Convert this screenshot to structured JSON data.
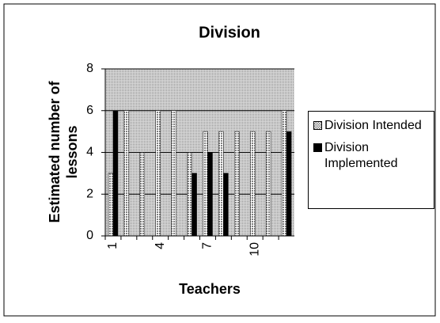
{
  "chart_data": {
    "type": "bar",
    "title": "Division",
    "x_label": "Teachers",
    "y_label": "Estimated number of lessons",
    "categories": [
      1,
      null,
      null,
      4,
      null,
      null,
      7,
      null,
      null,
      10,
      null,
      null
    ],
    "series": [
      {
        "name": "Division Intended",
        "color": "#c0c0c0",
        "values": [
          3,
          6,
          4,
          6,
          6,
          4,
          5,
          5,
          5,
          5,
          5,
          6
        ]
      },
      {
        "name": "Division Implemented",
        "color": "#000000",
        "values": [
          6,
          0,
          0,
          0,
          0,
          3,
          4,
          3,
          0,
          0,
          0,
          5
        ]
      }
    ],
    "ylim": [
      0,
      8
    ],
    "yticks": [
      0,
      2,
      4,
      6,
      8
    ],
    "grid": true,
    "legend": "right"
  }
}
